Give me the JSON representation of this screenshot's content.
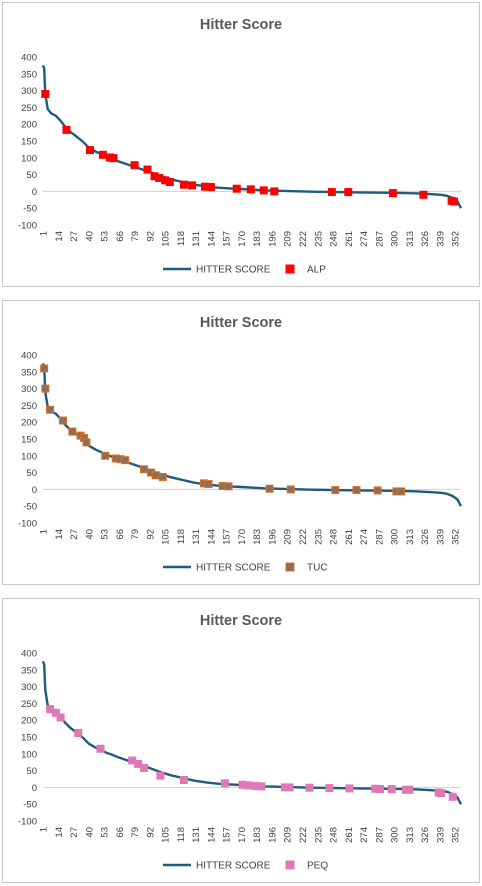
{
  "colors": {
    "line": "#1f5b7a",
    "grid": "#d9d9d9",
    "markers": [
      "#ff0000",
      "#8c6e5a",
      "#e078b8"
    ],
    "marker_edges": [
      "#ff0000",
      "#e07020",
      "#e078b8"
    ]
  },
  "chart_data": [
    {
      "type": "line",
      "title": "Hitter Score",
      "ylim": [
        -100,
        400
      ],
      "yticks": [
        400,
        350,
        300,
        250,
        200,
        150,
        100,
        50,
        0,
        -50,
        -100
      ],
      "xticks": [
        1,
        14,
        27,
        40,
        53,
        66,
        79,
        92,
        105,
        118,
        131,
        144,
        157,
        170,
        183,
        196,
        209,
        222,
        235,
        248,
        261,
        274,
        287,
        300,
        313,
        326,
        339,
        352
      ],
      "grid": false,
      "legend_position": "bottom",
      "series": [
        {
          "name": "HITTER SCORE",
          "kind": "line",
          "x": [
            1,
            2,
            3,
            5,
            8,
            12,
            16,
            20,
            25,
            30,
            35,
            40,
            45,
            50,
            55,
            60,
            65,
            70,
            80,
            90,
            100,
            110,
            120,
            130,
            140,
            150,
            160,
            170,
            180,
            190,
            200,
            210,
            230,
            250,
            270,
            290,
            310,
            320,
            330,
            340,
            345,
            350,
            354,
            357
          ],
          "y": [
            375,
            365,
            290,
            245,
            232,
            225,
            210,
            192,
            175,
            162,
            148,
            130,
            120,
            112,
            103,
            97,
            90,
            84,
            72,
            60,
            47,
            36,
            28,
            20,
            15,
            11,
            9,
            7,
            5,
            3,
            2,
            1,
            -1,
            -2,
            -3,
            -4,
            -5,
            -6,
            -8,
            -10,
            -13,
            -20,
            -30,
            -50
          ]
        },
        {
          "name": "ALP",
          "kind": "marker",
          "x": [
            3,
            21,
            41,
            52,
            58,
            61,
            79,
            90,
            96,
            100,
            105,
            109,
            121,
            128,
            139,
            144,
            166,
            178,
            189,
            198,
            247,
            261,
            299,
            325,
            349,
            351
          ],
          "y": [
            290,
            183,
            123,
            109,
            101,
            99,
            78,
            65,
            45,
            40,
            33,
            28,
            20,
            18,
            14,
            13,
            8,
            6,
            3,
            0,
            -2,
            -2,
            -5,
            -10,
            -28,
            -30
          ]
        }
      ]
    },
    {
      "type": "line",
      "title": "Hitter Score",
      "ylim": [
        -100,
        400
      ],
      "yticks": [
        400,
        350,
        300,
        250,
        200,
        150,
        100,
        50,
        0,
        -50,
        -100
      ],
      "xticks": [
        1,
        14,
        27,
        40,
        53,
        66,
        79,
        92,
        105,
        118,
        131,
        144,
        157,
        170,
        183,
        196,
        209,
        222,
        235,
        248,
        261,
        274,
        287,
        300,
        313,
        326,
        339,
        352
      ],
      "grid": false,
      "legend_position": "bottom",
      "series": [
        {
          "name": "HITTER SCORE",
          "kind": "line",
          "x": [
            1,
            2,
            3,
            5,
            8,
            12,
            16,
            20,
            25,
            30,
            35,
            40,
            45,
            50,
            55,
            60,
            65,
            70,
            80,
            90,
            100,
            110,
            120,
            130,
            140,
            150,
            160,
            170,
            180,
            190,
            200,
            210,
            230,
            250,
            270,
            290,
            310,
            320,
            330,
            340,
            345,
            350,
            354,
            357
          ],
          "y": [
            375,
            365,
            290,
            245,
            232,
            225,
            210,
            192,
            175,
            162,
            148,
            130,
            120,
            112,
            103,
            97,
            90,
            84,
            72,
            60,
            47,
            36,
            28,
            20,
            15,
            11,
            9,
            7,
            5,
            3,
            2,
            1,
            -1,
            -2,
            -3,
            -4,
            -5,
            -6,
            -8,
            -10,
            -13,
            -20,
            -30,
            -50
          ]
        },
        {
          "name": "TUC",
          "kind": "marker",
          "x": [
            2,
            3,
            7,
            18,
            26,
            33,
            36,
            38,
            54,
            63,
            67,
            71,
            87,
            93,
            97,
            103,
            138,
            142,
            154,
            159,
            194,
            212,
            250,
            268,
            286,
            302,
            306
          ],
          "y": [
            360,
            300,
            237,
            205,
            172,
            160,
            153,
            140,
            100,
            92,
            90,
            87,
            60,
            50,
            42,
            37,
            18,
            16,
            10,
            9,
            2,
            0,
            -2,
            -2,
            -3,
            -6,
            -6
          ]
        }
      ]
    },
    {
      "type": "line",
      "title": "Hitter Score",
      "ylim": [
        -100,
        400
      ],
      "yticks": [
        400,
        350,
        300,
        250,
        200,
        150,
        100,
        50,
        0,
        -50,
        -100
      ],
      "xticks": [
        1,
        14,
        27,
        40,
        53,
        66,
        79,
        92,
        105,
        118,
        131,
        144,
        157,
        170,
        183,
        196,
        209,
        222,
        235,
        248,
        261,
        274,
        287,
        300,
        313,
        326,
        339,
        352
      ],
      "grid": false,
      "legend_position": "bottom",
      "series": [
        {
          "name": "HITTER SCORE",
          "kind": "line",
          "x": [
            1,
            2,
            3,
            5,
            8,
            12,
            16,
            20,
            25,
            30,
            35,
            40,
            45,
            50,
            55,
            60,
            65,
            70,
            80,
            90,
            100,
            110,
            120,
            130,
            140,
            150,
            160,
            170,
            180,
            190,
            200,
            210,
            230,
            250,
            270,
            290,
            310,
            320,
            330,
            340,
            345,
            350,
            354,
            357
          ],
          "y": [
            375,
            365,
            290,
            245,
            232,
            225,
            210,
            192,
            175,
            162,
            148,
            130,
            120,
            112,
            103,
            97,
            90,
            84,
            72,
            60,
            47,
            36,
            28,
            20,
            15,
            11,
            9,
            7,
            5,
            3,
            2,
            1,
            -1,
            -2,
            -3,
            -4,
            -5,
            -6,
            -8,
            -10,
            -13,
            -20,
            -30,
            -50
          ]
        },
        {
          "name": "PEQ",
          "kind": "marker",
          "x": [
            7,
            12,
            16,
            31,
            50,
            77,
            82,
            87,
            101,
            121,
            156,
            171,
            176,
            182,
            187,
            207,
            211,
            228,
            245,
            262,
            284,
            288,
            298,
            310,
            313,
            338,
            340,
            350
          ],
          "y": [
            233,
            222,
            208,
            162,
            115,
            80,
            70,
            58,
            35,
            22,
            12,
            8,
            6,
            4,
            3,
            0,
            0,
            -1,
            -2,
            -3,
            -4,
            -5,
            -5,
            -7,
            -7,
            -15,
            -17,
            -28
          ]
        }
      ]
    }
  ]
}
